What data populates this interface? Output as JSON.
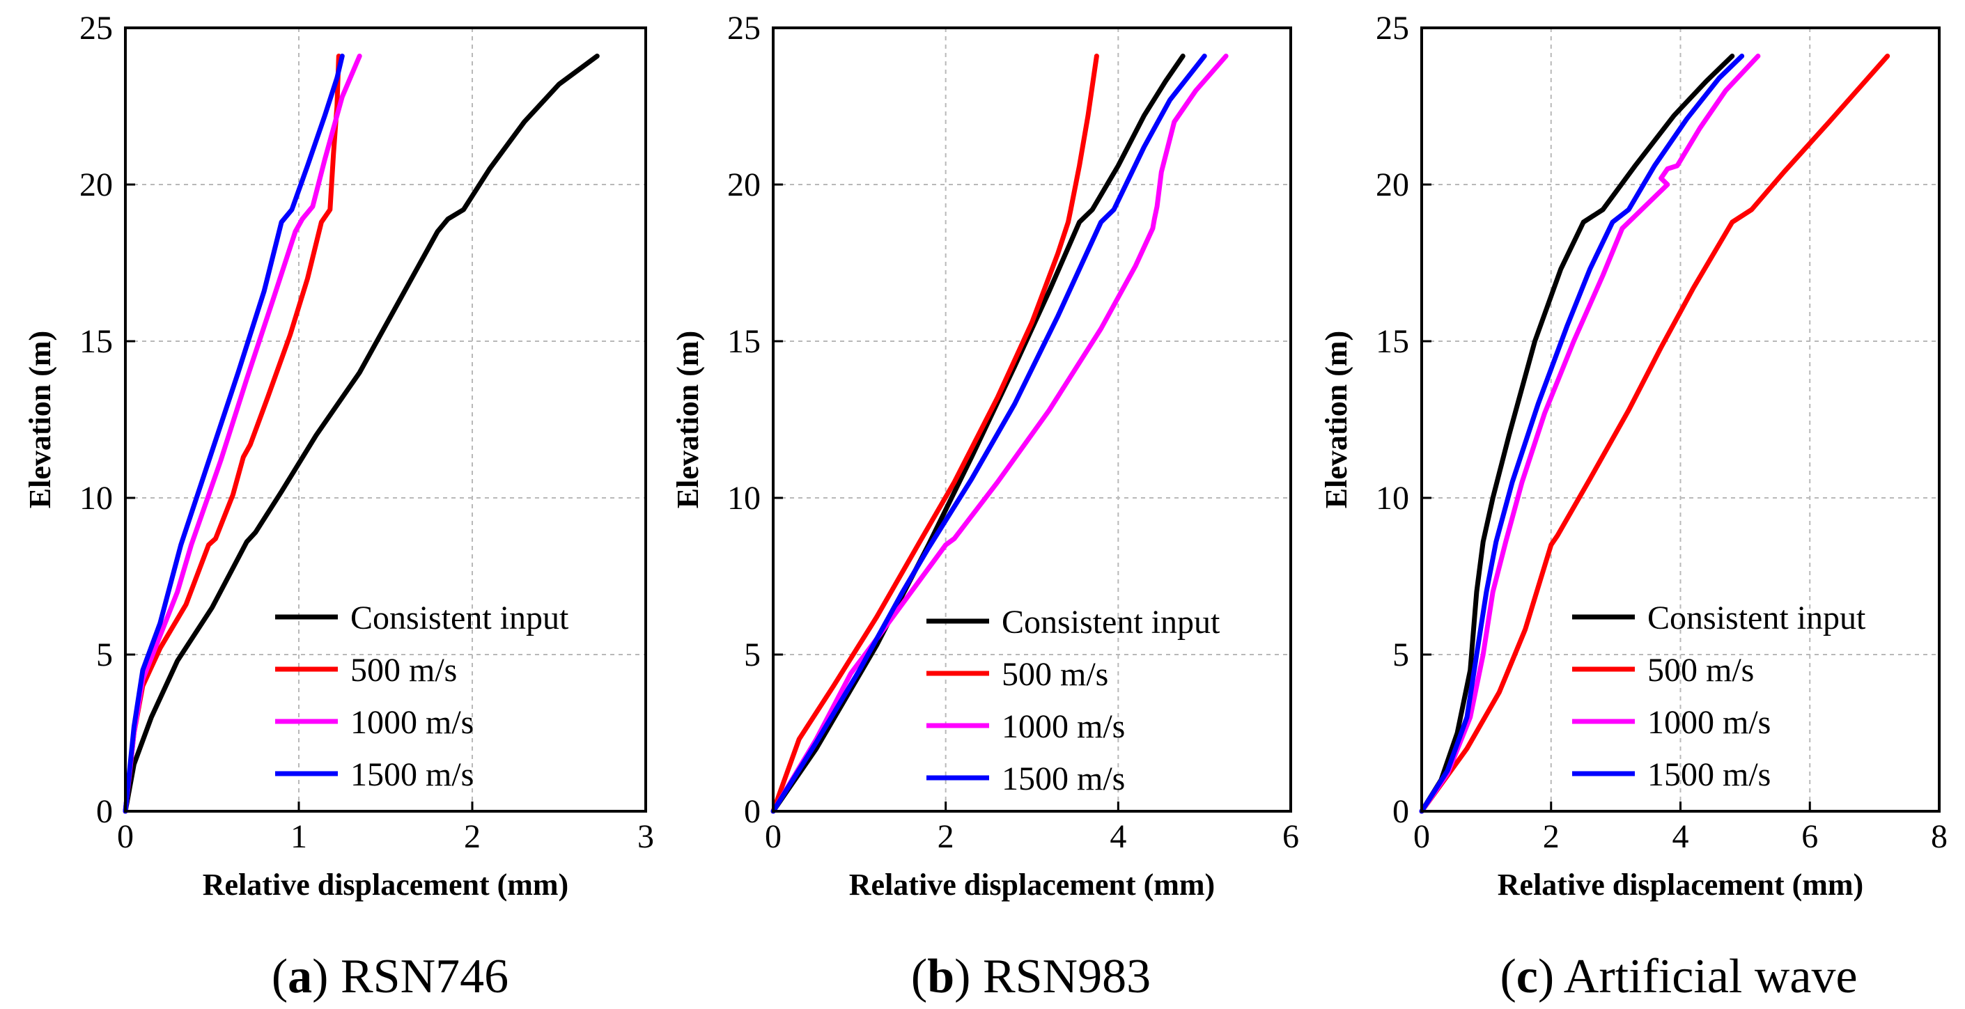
{
  "chart_data": [
    {
      "type": "line",
      "caption": {
        "letter": "a",
        "open": "(",
        "close": ")",
        "text": " RSN746"
      },
      "xlabel": "Relative displacement (mm)",
      "ylabel": "Elevation (m)",
      "xlim": [
        0,
        3
      ],
      "ylim": [
        0,
        25
      ],
      "xticks": [
        0,
        1,
        2,
        3
      ],
      "yticks": [
        0,
        5,
        10,
        15,
        20,
        25
      ],
      "grid": true,
      "legend_position": "bottom-right",
      "series": [
        {
          "name": "Consistent input",
          "color": "#000000",
          "points": [
            [
              0,
              0
            ],
            [
              0.05,
              1.5
            ],
            [
              0.15,
              3
            ],
            [
              0.3,
              4.8
            ],
            [
              0.5,
              6.5
            ],
            [
              0.7,
              8.6
            ],
            [
              0.75,
              8.9
            ],
            [
              0.9,
              10.2
            ],
            [
              1.1,
              12
            ],
            [
              1.35,
              14
            ],
            [
              1.55,
              16
            ],
            [
              1.7,
              17.5
            ],
            [
              1.8,
              18.5
            ],
            [
              1.86,
              18.9
            ],
            [
              1.95,
              19.2
            ],
            [
              2.1,
              20.5
            ],
            [
              2.3,
              22
            ],
            [
              2.5,
              23.2
            ],
            [
              2.72,
              24.1
            ]
          ]
        },
        {
          "name": "500 m/s",
          "color": "#ff0000",
          "points": [
            [
              0,
              0
            ],
            [
              0.05,
              2.5
            ],
            [
              0.1,
              4
            ],
            [
              0.2,
              5.2
            ],
            [
              0.35,
              6.6
            ],
            [
              0.48,
              8.5
            ],
            [
              0.52,
              8.7
            ],
            [
              0.62,
              10.1
            ],
            [
              0.68,
              11.3
            ],
            [
              0.72,
              11.7
            ],
            [
              0.82,
              13.2
            ],
            [
              0.95,
              15.2
            ],
            [
              1.05,
              17
            ],
            [
              1.13,
              18.8
            ],
            [
              1.18,
              19.2
            ],
            [
              1.2,
              21
            ],
            [
              1.22,
              22.5
            ],
            [
              1.23,
              24.1
            ]
          ]
        },
        {
          "name": "1000 m/s",
          "color": "#ff00ff",
          "points": [
            [
              0,
              0
            ],
            [
              0.05,
              2.5
            ],
            [
              0.1,
              4.2
            ],
            [
              0.2,
              5.6
            ],
            [
              0.3,
              7
            ],
            [
              0.38,
              8.5
            ],
            [
              0.55,
              11.2
            ],
            [
              0.7,
              13.8
            ],
            [
              0.85,
              16.3
            ],
            [
              0.98,
              18.5
            ],
            [
              1.02,
              18.9
            ],
            [
              1.08,
              19.3
            ],
            [
              1.15,
              20.8
            ],
            [
              1.25,
              22.8
            ],
            [
              1.35,
              24.1
            ]
          ]
        },
        {
          "name": "1500 m/s",
          "color": "#0000ff",
          "points": [
            [
              0,
              0
            ],
            [
              0.05,
              2.7
            ],
            [
              0.1,
              4.5
            ],
            [
              0.2,
              6
            ],
            [
              0.32,
              8.5
            ],
            [
              0.5,
              11.5
            ],
            [
              0.65,
              14
            ],
            [
              0.8,
              16.6
            ],
            [
              0.9,
              18.8
            ],
            [
              0.96,
              19.2
            ],
            [
              1.05,
              20.6
            ],
            [
              1.15,
              22.2
            ],
            [
              1.22,
              23.4
            ],
            [
              1.25,
              24.1
            ]
          ]
        }
      ]
    },
    {
      "type": "line",
      "caption": {
        "letter": "b",
        "open": "(",
        "close": ")",
        "text": " RSN983"
      },
      "xlabel": "Relative displacement (mm)",
      "ylabel": "Elevation (m)",
      "xlim": [
        0,
        6
      ],
      "ylim": [
        0,
        25
      ],
      "xticks": [
        0,
        2,
        4,
        6
      ],
      "yticks": [
        0,
        5,
        10,
        15,
        20,
        25
      ],
      "grid": true,
      "legend_position": "bottom-right",
      "series": [
        {
          "name": "Consistent input",
          "color": "#000000",
          "points": [
            [
              0,
              0
            ],
            [
              0.5,
              2
            ],
            [
              1.2,
              5.3
            ],
            [
              1.8,
              8.5
            ],
            [
              2.3,
              11.3
            ],
            [
              2.8,
              14.2
            ],
            [
              3.2,
              16.6
            ],
            [
              3.55,
              18.8
            ],
            [
              3.7,
              19.2
            ],
            [
              4.0,
              20.6
            ],
            [
              4.3,
              22.2
            ],
            [
              4.55,
              23.3
            ],
            [
              4.75,
              24.1
            ]
          ]
        },
        {
          "name": "500 m/s",
          "color": "#ff0000",
          "points": [
            [
              0,
              0
            ],
            [
              0.3,
              2.3
            ],
            [
              0.7,
              4
            ],
            [
              1.2,
              6.2
            ],
            [
              1.7,
              8.6
            ],
            [
              2.1,
              10.5
            ],
            [
              2.6,
              13.2
            ],
            [
              3.0,
              15.6
            ],
            [
              3.3,
              17.8
            ],
            [
              3.42,
              18.8
            ],
            [
              3.45,
              19.2
            ],
            [
              3.55,
              20.6
            ],
            [
              3.65,
              22.2
            ],
            [
              3.75,
              24.1
            ]
          ]
        },
        {
          "name": "1000 m/s",
          "color": "#ff00ff",
          "points": [
            [
              0,
              0
            ],
            [
              0.5,
              2.3
            ],
            [
              0.9,
              4.4
            ],
            [
              1.2,
              5.5
            ],
            [
              1.6,
              7
            ],
            [
              2.0,
              8.5
            ],
            [
              2.1,
              8.7
            ],
            [
              2.6,
              10.5
            ],
            [
              3.2,
              12.8
            ],
            [
              3.8,
              15.4
            ],
            [
              4.2,
              17.4
            ],
            [
              4.4,
              18.6
            ],
            [
              4.42,
              18.9
            ],
            [
              4.45,
              19.3
            ],
            [
              4.5,
              20.4
            ],
            [
              4.65,
              22
            ],
            [
              4.9,
              23
            ],
            [
              5.25,
              24.1
            ]
          ]
        },
        {
          "name": "1500 m/s",
          "color": "#0000ff",
          "points": [
            [
              0,
              0
            ],
            [
              0.5,
              2.2
            ],
            [
              1.0,
              4.5
            ],
            [
              1.5,
              7
            ],
            [
              1.8,
              8.4
            ],
            [
              2.3,
              10.6
            ],
            [
              2.8,
              13
            ],
            [
              3.3,
              15.8
            ],
            [
              3.6,
              17.6
            ],
            [
              3.8,
              18.8
            ],
            [
              3.95,
              19.2
            ],
            [
              4.3,
              21.2
            ],
            [
              4.6,
              22.7
            ],
            [
              5.0,
              24.1
            ]
          ]
        }
      ]
    },
    {
      "type": "line",
      "caption": {
        "letter": "c",
        "open": "(",
        "close": ")",
        "text": " Artificial wave"
      },
      "xlabel": "Relative displacement (mm)",
      "ylabel": "Elevation (m)",
      "xlim": [
        0,
        8
      ],
      "ylim": [
        0,
        25
      ],
      "xticks": [
        0,
        2,
        4,
        6,
        8
      ],
      "yticks": [
        0,
        5,
        10,
        15,
        20,
        25
      ],
      "grid": true,
      "legend_position": "bottom-right",
      "series": [
        {
          "name": "Consistent input",
          "color": "#000000",
          "points": [
            [
              0,
              0
            ],
            [
              0.3,
              1
            ],
            [
              0.55,
              2.5
            ],
            [
              0.75,
              4.5
            ],
            [
              0.85,
              7
            ],
            [
              0.95,
              8.6
            ],
            [
              1.1,
              10
            ],
            [
              1.35,
              12
            ],
            [
              1.75,
              15
            ],
            [
              2.15,
              17.3
            ],
            [
              2.5,
              18.8
            ],
            [
              2.8,
              19.2
            ],
            [
              3.3,
              20.6
            ],
            [
              3.9,
              22.2
            ],
            [
              4.4,
              23.3
            ],
            [
              4.8,
              24.1
            ]
          ]
        },
        {
          "name": "500 m/s",
          "color": "#ff0000",
          "points": [
            [
              0,
              0
            ],
            [
              0.7,
              2
            ],
            [
              1.2,
              3.8
            ],
            [
              1.6,
              5.8
            ],
            [
              2.0,
              8.5
            ],
            [
              2.1,
              8.8
            ],
            [
              2.6,
              10.6
            ],
            [
              3.2,
              12.8
            ],
            [
              3.7,
              14.8
            ],
            [
              4.2,
              16.7
            ],
            [
              4.8,
              18.8
            ],
            [
              5.1,
              19.2
            ],
            [
              5.6,
              20.4
            ],
            [
              6.3,
              22
            ],
            [
              7.2,
              24.1
            ]
          ]
        },
        {
          "name": "1000 m/s",
          "color": "#ff00ff",
          "points": [
            [
              0,
              0
            ],
            [
              0.4,
              1.2
            ],
            [
              0.75,
              3
            ],
            [
              0.95,
              5
            ],
            [
              1.1,
              7
            ],
            [
              1.3,
              8.6
            ],
            [
              1.55,
              10.5
            ],
            [
              1.9,
              12.7
            ],
            [
              2.35,
              15
            ],
            [
              2.8,
              17.1
            ],
            [
              3.1,
              18.6
            ],
            [
              3.3,
              19
            ],
            [
              3.6,
              19.6
            ],
            [
              3.8,
              20
            ],
            [
              3.7,
              20.2
            ],
            [
              3.8,
              20.5
            ],
            [
              3.95,
              20.6
            ],
            [
              4.3,
              21.8
            ],
            [
              4.7,
              23
            ],
            [
              5.2,
              24.1
            ]
          ]
        },
        {
          "name": "1500 m/s",
          "color": "#0000ff",
          "points": [
            [
              0,
              0
            ],
            [
              0.4,
              1.3
            ],
            [
              0.7,
              3
            ],
            [
              0.85,
              5
            ],
            [
              1.0,
              7
            ],
            [
              1.15,
              8.6
            ],
            [
              1.4,
              10.5
            ],
            [
              1.8,
              13
            ],
            [
              2.25,
              15.5
            ],
            [
              2.6,
              17.3
            ],
            [
              2.95,
              18.8
            ],
            [
              3.2,
              19.2
            ],
            [
              3.6,
              20.6
            ],
            [
              4.1,
              22.1
            ],
            [
              4.6,
              23.4
            ],
            [
              4.95,
              24.1
            ]
          ]
        }
      ]
    }
  ]
}
